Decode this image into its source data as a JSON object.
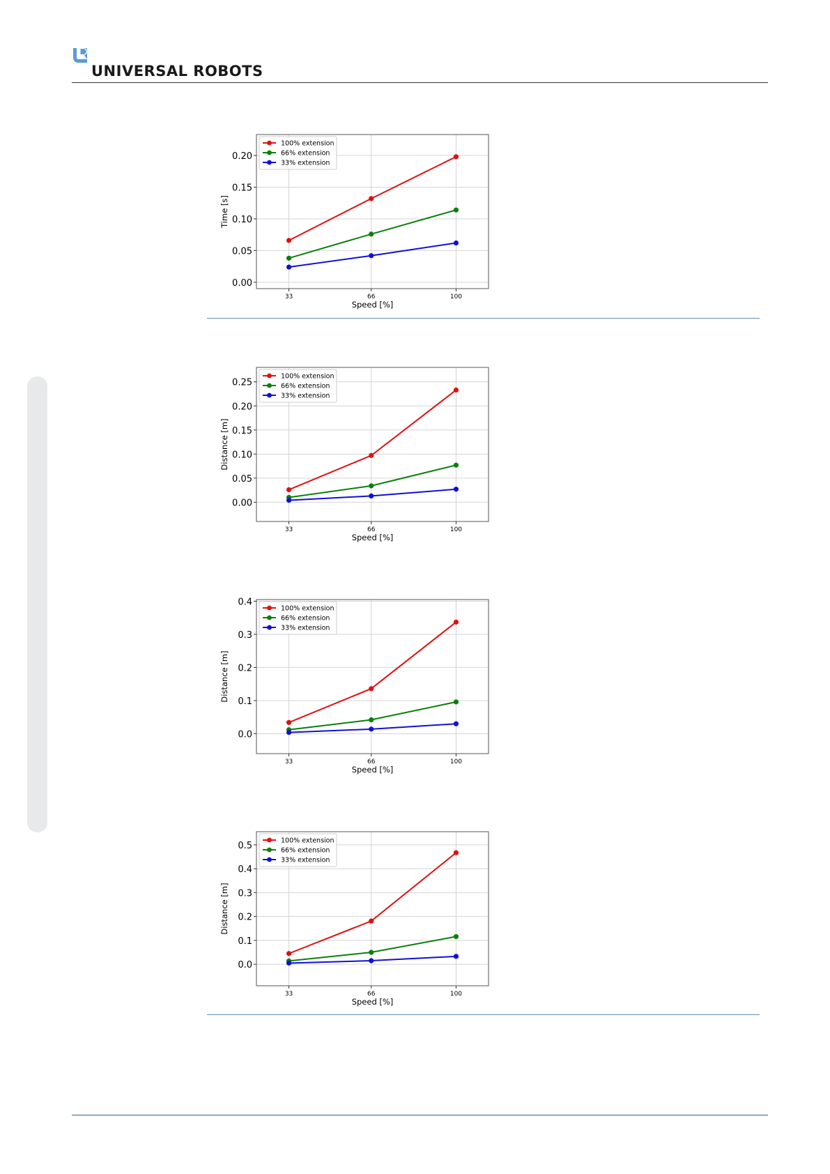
{
  "header": {
    "brand_name": "UNIVERSAL ROBOTS",
    "logo_icon": "ur-logo-icon"
  },
  "colors": {
    "series_100": "#e01010",
    "series_66": "#0a800a",
    "series_33": "#1010d8",
    "brand_blue": "#5b9bd5",
    "rule_blue": "#2e5c86"
  },
  "chart_data": [
    {
      "type": "line",
      "xlabel": "Speed [%]",
      "ylabel": "Time [s]",
      "x": [
        33,
        66,
        100
      ],
      "xlim": [
        20,
        113
      ],
      "ylim": [
        -0.01,
        0.233
      ],
      "yticks": [
        0.0,
        0.05,
        0.1,
        0.15,
        0.2
      ],
      "ytick_labels": [
        "0.00",
        "0.05",
        "0.10",
        "0.15",
        "0.20"
      ],
      "grid": true,
      "legend": "top-left",
      "series": [
        {
          "name": "100% extension",
          "values": [
            0.066,
            0.132,
            0.198
          ]
        },
        {
          "name": "66% extension",
          "values": [
            0.038,
            0.076,
            0.114
          ]
        },
        {
          "name": "33% extension",
          "values": [
            0.024,
            0.042,
            0.062
          ]
        }
      ]
    },
    {
      "type": "line",
      "xlabel": "Speed [%]",
      "ylabel": "Distance [m]",
      "x": [
        33,
        66,
        100
      ],
      "xlim": [
        20,
        113
      ],
      "ylim": [
        -0.04,
        0.28
      ],
      "yticks": [
        0.0,
        0.05,
        0.1,
        0.15,
        0.2,
        0.25
      ],
      "ytick_labels": [
        "0.00",
        "0.05",
        "0.10",
        "0.15",
        "0.20",
        "0.25"
      ],
      "grid": true,
      "legend": "top-left",
      "series": [
        {
          "name": "100% extension",
          "values": [
            0.026,
            0.097,
            0.233
          ]
        },
        {
          "name": "66% extension",
          "values": [
            0.01,
            0.034,
            0.077
          ]
        },
        {
          "name": "33% extension",
          "values": [
            0.004,
            0.013,
            0.027
          ]
        }
      ]
    },
    {
      "type": "line",
      "xlabel": "Speed [%]",
      "ylabel": "Distance [m]",
      "x": [
        33,
        66,
        100
      ],
      "xlim": [
        20,
        113
      ],
      "ylim": [
        -0.06,
        0.405
      ],
      "yticks": [
        0.0,
        0.1,
        0.2,
        0.3,
        0.4
      ],
      "ytick_labels": [
        "0.0",
        "0.1",
        "0.2",
        "0.3",
        "0.4"
      ],
      "grid": true,
      "legend": "top-left",
      "series": [
        {
          "name": "100% extension",
          "values": [
            0.034,
            0.136,
            0.337
          ]
        },
        {
          "name": "66% extension",
          "values": [
            0.012,
            0.042,
            0.096
          ]
        },
        {
          "name": "33% extension",
          "values": [
            0.004,
            0.014,
            0.03
          ]
        }
      ]
    },
    {
      "type": "line",
      "xlabel": "Speed [%]",
      "ylabel": "Distance [m]",
      "x": [
        33,
        66,
        100
      ],
      "xlim": [
        20,
        113
      ],
      "ylim": [
        -0.09,
        0.555
      ],
      "yticks": [
        0.0,
        0.1,
        0.2,
        0.3,
        0.4,
        0.5
      ],
      "ytick_labels": [
        "0.0",
        "0.1",
        "0.2",
        "0.3",
        "0.4",
        "0.5"
      ],
      "grid": true,
      "legend": "top-left",
      "series": [
        {
          "name": "100% extension",
          "values": [
            0.045,
            0.181,
            0.467
          ]
        },
        {
          "name": "66% extension",
          "values": [
            0.014,
            0.05,
            0.116
          ]
        },
        {
          "name": "33% extension",
          "values": [
            0.005,
            0.015,
            0.033
          ]
        }
      ]
    }
  ]
}
